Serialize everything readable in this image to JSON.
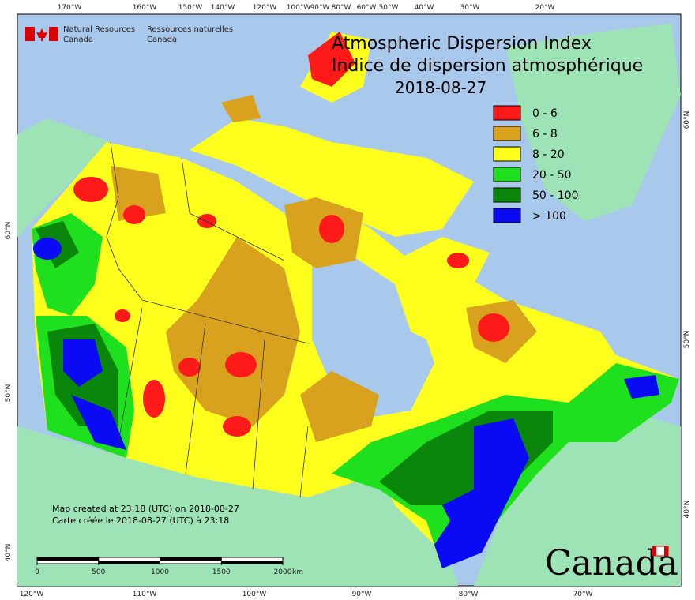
{
  "header": {
    "agency_en": [
      "Natural Resources",
      "Canada"
    ],
    "agency_fr": [
      "Ressources naturelles",
      "Canada"
    ],
    "title_en": "Atmospheric Dispersion Index",
    "title_fr": "Indice de dispersion atmosphérique",
    "date": "2018-08-27"
  },
  "legend": [
    {
      "label": "0 - 6",
      "color": "#ff1a1a"
    },
    {
      "label": "6 - 8",
      "color": "#d9a21e"
    },
    {
      "label": "8 - 20",
      "color": "#ffff1e"
    },
    {
      "label": "20 - 50",
      "color": "#1ee01e"
    },
    {
      "label": "50 - 100",
      "color": "#0a870a"
    },
    {
      "label": "> 100",
      "color": "#0a0af5"
    }
  ],
  "graticule": {
    "top": [
      "170°W",
      "160°W",
      "150°W",
      "140°W",
      "120°W",
      "100°W",
      "90°W",
      "80°W",
      "60°W",
      "50°W",
      "40°W",
      "30°W",
      "20°W"
    ],
    "bottom": [
      "120°W",
      "110°W",
      "100°W",
      "90°W",
      "80°W",
      "70°W"
    ],
    "left": [
      "60°N",
      "50°N",
      "40°N"
    ],
    "right": [
      "60°N",
      "50°N",
      "40°N"
    ]
  },
  "notes": [
    "Map created at 23:18 (UTC) on 2018-08-27",
    "Carte créée le 2018-08-27 (UTC) à 23:18"
  ],
  "scale": {
    "ticks": [
      0,
      500,
      1000,
      1500,
      2000
    ],
    "unit": "km"
  },
  "wordmark": "Canada"
}
